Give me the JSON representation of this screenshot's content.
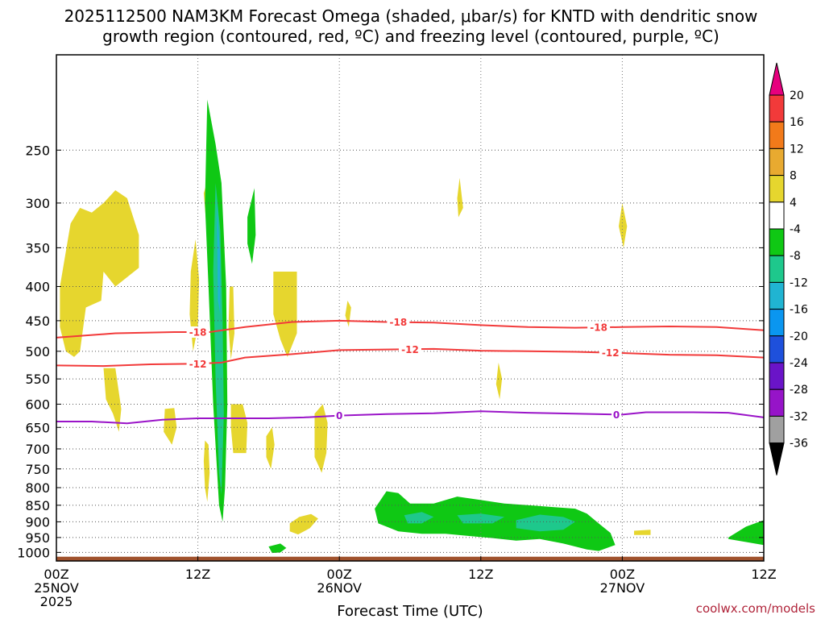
{
  "chart_data": {
    "type": "time-height cross section",
    "title_line1": "2025112500 NAM3KM Forecast Omega (shaded, μbar/s) for KNTD with dendritic snow",
    "title_line2": "growth region (contoured, red, ºC) and freezing level (contoured, purple, ºC)",
    "xlabel": "Forecast Time (UTC)",
    "x_range_hours": [
      0,
      60
    ],
    "y_range_hpa": [
      1030,
      180
    ],
    "x_ticks": [
      {
        "hour": 0,
        "line1": "00Z",
        "line2": "25NOV",
        "line3": "2025"
      },
      {
        "hour": 12,
        "line1": "12Z",
        "line2": "",
        "line3": ""
      },
      {
        "hour": 24,
        "line1": "00Z",
        "line2": "26NOV",
        "line3": ""
      },
      {
        "hour": 36,
        "line1": "12Z",
        "line2": "",
        "line3": ""
      },
      {
        "hour": 48,
        "line1": "00Z",
        "line2": "27NOV",
        "line3": ""
      },
      {
        "hour": 60,
        "line1": "12Z",
        "line2": "",
        "line3": ""
      }
    ],
    "y_ticks": [
      250,
      300,
      350,
      400,
      450,
      500,
      550,
      600,
      650,
      700,
      750,
      800,
      850,
      900,
      950,
      1000
    ],
    "y_tick_labels": [
      "250",
      "300",
      "350",
      "400",
      "450",
      "500",
      "550",
      "600",
      "650",
      "700",
      "750",
      "800",
      "850",
      "900",
      "950",
      "1000"
    ],
    "colorbar": {
      "levels": [
        "20",
        "16",
        "12",
        "8",
        "4",
        "-4",
        "-8",
        "-12",
        "-16",
        "-20",
        "-24",
        "-28",
        "-32",
        "-36"
      ],
      "colors": [
        "#e6007e",
        "#f23a3a",
        "#f27a1a",
        "#e8aa30",
        "#e6d62e",
        "#ffffff",
        "#0fc814",
        "#1ec88c",
        "#20b4d2",
        "#0a96f0",
        "#1e50dc",
        "#6a14c8",
        "#9614c8",
        "#a0a0a0",
        "#000000"
      ]
    },
    "contours": [
      {
        "name": "-18",
        "color": "#f23a3a",
        "points": [
          [
            0,
            477
          ],
          [
            5,
            470
          ],
          [
            10,
            468
          ],
          [
            13,
            468
          ],
          [
            16,
            460
          ],
          [
            20,
            452
          ],
          [
            24,
            450
          ],
          [
            28,
            452
          ],
          [
            32,
            453
          ],
          [
            36,
            457
          ],
          [
            40,
            460
          ],
          [
            44,
            461
          ],
          [
            48,
            460
          ],
          [
            52,
            459
          ],
          [
            56,
            460
          ],
          [
            60,
            465
          ]
        ],
        "labels": [
          {
            "hour": 12,
            "text": "-18"
          },
          {
            "hour": 29,
            "text": "-18"
          },
          {
            "hour": 46,
            "text": "-18"
          }
        ]
      },
      {
        "name": "-12",
        "color": "#f23a3a",
        "points": [
          [
            0,
            525
          ],
          [
            4,
            526
          ],
          [
            8,
            523
          ],
          [
            12,
            522
          ],
          [
            14,
            520
          ],
          [
            16,
            511
          ],
          [
            20,
            505
          ],
          [
            24,
            498
          ],
          [
            28,
            497
          ],
          [
            32,
            496
          ],
          [
            36,
            499
          ],
          [
            40,
            500
          ],
          [
            44,
            501
          ],
          [
            48,
            503
          ],
          [
            52,
            506
          ],
          [
            56,
            507
          ],
          [
            60,
            511
          ]
        ],
        "labels": [
          {
            "hour": 12,
            "text": "-12"
          },
          {
            "hour": 30,
            "text": "-12"
          },
          {
            "hour": 47,
            "text": "-12"
          }
        ]
      },
      {
        "name": "0",
        "color": "#9a14c8",
        "points": [
          [
            0,
            637
          ],
          [
            3,
            637
          ],
          [
            6,
            641
          ],
          [
            9,
            633
          ],
          [
            12,
            630
          ],
          [
            15,
            630
          ],
          [
            18,
            630
          ],
          [
            21,
            628
          ],
          [
            24,
            624
          ],
          [
            28,
            621
          ],
          [
            32,
            619
          ],
          [
            36,
            615
          ],
          [
            40,
            618
          ],
          [
            44,
            620
          ],
          [
            48,
            622
          ],
          [
            50,
            617
          ],
          [
            54,
            617
          ],
          [
            57,
            618
          ],
          [
            60,
            628
          ]
        ],
        "labels": [
          {
            "hour": 24,
            "text": "0"
          },
          {
            "hour": 47.5,
            "text": "0"
          }
        ]
      }
    ],
    "shaded_regions": [
      {
        "level": "4 to 8",
        "color": "#e6d62e",
        "points": [
          [
            0.3,
            400
          ],
          [
            1.2,
            322
          ],
          [
            2,
            305
          ],
          [
            3,
            310
          ],
          [
            4,
            300
          ],
          [
            5,
            287
          ],
          [
            6,
            295
          ],
          [
            7,
            335
          ],
          [
            7,
            375
          ],
          [
            5,
            400
          ],
          [
            4,
            380
          ],
          [
            3.8,
            420
          ],
          [
            2.5,
            430
          ],
          [
            2,
            500
          ],
          [
            1.5,
            510
          ],
          [
            0.8,
            500
          ],
          [
            0.3,
            460
          ]
        ]
      },
      {
        "level": "4 to 8",
        "color": "#e6d62e",
        "points": [
          [
            4,
            530
          ],
          [
            5,
            530
          ],
          [
            5.5,
            610
          ],
          [
            5.3,
            660
          ],
          [
            4.8,
            620
          ],
          [
            4.2,
            590
          ]
        ]
      },
      {
        "level": "4 to 8",
        "color": "#e6d62e",
        "points": [
          [
            9.2,
            610
          ],
          [
            10,
            608
          ],
          [
            10.2,
            650
          ],
          [
            9.8,
            690
          ],
          [
            9.1,
            660
          ]
        ]
      },
      {
        "level": "4 to 8",
        "color": "#e6d62e",
        "points": [
          [
            11.4,
            380
          ],
          [
            11.8,
            340
          ],
          [
            12.1,
            390
          ],
          [
            12,
            460
          ],
          [
            11.6,
            500
          ],
          [
            11.3,
            440
          ]
        ]
      },
      {
        "level": "4 to 8",
        "color": "#e6d62e",
        "points": [
          [
            12.5,
            290
          ],
          [
            12.8,
            278
          ],
          [
            13,
            300
          ],
          [
            12.7,
            320
          ]
        ]
      },
      {
        "level": "4 to 8",
        "color": "#e6d62e",
        "points": [
          [
            12.6,
            680
          ],
          [
            12.9,
            690
          ],
          [
            13,
            760
          ],
          [
            12.8,
            840
          ],
          [
            12.6,
            800
          ],
          [
            12.5,
            730
          ]
        ]
      },
      {
        "level": "4 to 8",
        "color": "#e6d62e",
        "points": [
          [
            14.7,
            400
          ],
          [
            15,
            400
          ],
          [
            15.1,
            470
          ],
          [
            14.8,
            515
          ],
          [
            14.6,
            460
          ]
        ]
      },
      {
        "level": "4 to 8",
        "color": "#e6d62e",
        "points": [
          [
            14.8,
            600
          ],
          [
            15.8,
            600
          ],
          [
            16.2,
            640
          ],
          [
            16.1,
            710
          ],
          [
            15,
            710
          ],
          [
            14.8,
            650
          ]
        ]
      },
      {
        "level": "4 to 8",
        "color": "#e6d62e",
        "points": [
          [
            17.8,
            670
          ],
          [
            18.3,
            650
          ],
          [
            18.5,
            690
          ],
          [
            18.2,
            750
          ],
          [
            17.8,
            720
          ]
        ]
      },
      {
        "level": "4 to 8",
        "color": "#e6d62e",
        "points": [
          [
            18.4,
            380
          ],
          [
            20.4,
            380
          ],
          [
            20.4,
            470
          ],
          [
            19.6,
            510
          ],
          [
            19,
            480
          ],
          [
            18.4,
            440
          ]
        ]
      },
      {
        "level": "4 to 8",
        "color": "#e6d62e",
        "points": [
          [
            21.9,
            620
          ],
          [
            22.6,
            600
          ],
          [
            23,
            640
          ],
          [
            22.9,
            710
          ],
          [
            22.5,
            760
          ],
          [
            21.9,
            720
          ]
        ]
      },
      {
        "level": "4 to 8",
        "color": "#e6d62e",
        "points": [
          [
            19.8,
            905
          ],
          [
            20.6,
            885
          ],
          [
            21.6,
            876
          ],
          [
            22.2,
            890
          ],
          [
            21.5,
            920
          ],
          [
            20.5,
            940
          ],
          [
            19.8,
            930
          ]
        ]
      },
      {
        "level": "4 to 8",
        "color": "#e6d62e",
        "points": [
          [
            24.5,
            442
          ],
          [
            24.7,
            420
          ],
          [
            25,
            430
          ],
          [
            24.8,
            460
          ]
        ]
      },
      {
        "level": "4 to 8",
        "color": "#e6d62e",
        "points": [
          [
            34,
            295
          ],
          [
            34.2,
            275
          ],
          [
            34.5,
            305
          ],
          [
            34.1,
            315
          ]
        ]
      },
      {
        "level": "4 to 8",
        "color": "#e6d62e",
        "points": [
          [
            37.3,
            560
          ],
          [
            37.5,
            520
          ],
          [
            37.8,
            550
          ],
          [
            37.6,
            590
          ]
        ]
      },
      {
        "level": "4 to 8",
        "color": "#e6d62e",
        "points": [
          [
            47.7,
            325
          ],
          [
            48,
            300
          ],
          [
            48.4,
            325
          ],
          [
            48.1,
            350
          ]
        ]
      },
      {
        "level": "4 to 8",
        "color": "#e6d62e",
        "points": [
          [
            49,
            928
          ],
          [
            50.4,
            925
          ],
          [
            50.4,
            942
          ],
          [
            49,
            942
          ]
        ]
      },
      {
        "level": "-4 to -8",
        "color": "#0fc814",
        "points": [
          [
            12.8,
            210
          ],
          [
            13.5,
            245
          ],
          [
            14,
            280
          ],
          [
            14.4,
            400
          ],
          [
            14.5,
            600
          ],
          [
            14.3,
            800
          ],
          [
            14.1,
            900
          ],
          [
            13.8,
            850
          ],
          [
            13.3,
            600
          ],
          [
            12.9,
            400
          ],
          [
            12.6,
            300
          ]
        ]
      },
      {
        "level": "-8 to -12",
        "color": "#1ec88c",
        "points": [
          [
            13.5,
            280
          ],
          [
            13.9,
            330
          ],
          [
            14.1,
            450
          ],
          [
            14.2,
            620
          ],
          [
            14,
            820
          ],
          [
            13.8,
            760
          ],
          [
            13.5,
            550
          ],
          [
            13.3,
            380
          ]
        ]
      },
      {
        "level": "-12 to -16",
        "color": "#20b4d2",
        "points": [
          [
            13.6,
            300
          ],
          [
            13.9,
            360
          ],
          [
            13.9,
            440
          ],
          [
            13.7,
            420
          ]
        ]
      },
      {
        "level": "-4 to -8",
        "color": "#0fc814",
        "points": [
          [
            16.2,
            315
          ],
          [
            16.8,
            285
          ],
          [
            16.9,
            335
          ],
          [
            16.6,
            370
          ],
          [
            16.2,
            345
          ]
        ]
      },
      {
        "level": "-4 to -8",
        "color": "#0fc814",
        "points": [
          [
            18,
            980
          ],
          [
            19,
            970
          ],
          [
            19.5,
            985
          ],
          [
            19,
            1000
          ],
          [
            18.3,
            1002
          ]
        ]
      },
      {
        "level": "-4 to -8",
        "color": "#0fc814",
        "points": [
          [
            27,
            860
          ],
          [
            28,
            810
          ],
          [
            29,
            815
          ],
          [
            30,
            845
          ],
          [
            32,
            845
          ],
          [
            34,
            825
          ],
          [
            36,
            835
          ],
          [
            38,
            845
          ],
          [
            40,
            850
          ],
          [
            42,
            855
          ],
          [
            44,
            860
          ],
          [
            45,
            875
          ],
          [
            46,
            905
          ],
          [
            47,
            935
          ],
          [
            47.4,
            975
          ],
          [
            46,
            995
          ],
          [
            45,
            990
          ],
          [
            43,
            970
          ],
          [
            41,
            955
          ],
          [
            39,
            960
          ],
          [
            37,
            952
          ],
          [
            35,
            945
          ],
          [
            33,
            938
          ],
          [
            31,
            938
          ],
          [
            29,
            930
          ],
          [
            28,
            915
          ],
          [
            27.3,
            905
          ]
        ]
      },
      {
        "level": "-8 to -12",
        "color": "#1ec88c",
        "points": [
          [
            29.5,
            880
          ],
          [
            31,
            870
          ],
          [
            32,
            885
          ],
          [
            31,
            905
          ],
          [
            29.8,
            905
          ]
        ]
      },
      {
        "level": "-8 to -12",
        "color": "#1ec88c",
        "points": [
          [
            34,
            880
          ],
          [
            36,
            875
          ],
          [
            38,
            885
          ],
          [
            37,
            905
          ],
          [
            34.5,
            905
          ]
        ]
      },
      {
        "level": "-8 to -12",
        "color": "#1ec88c",
        "points": [
          [
            39,
            895
          ],
          [
            41,
            878
          ],
          [
            43,
            885
          ],
          [
            44,
            900
          ],
          [
            43,
            925
          ],
          [
            41,
            930
          ],
          [
            39,
            920
          ]
        ]
      },
      {
        "level": "-4 to -8",
        "color": "#0fc814",
        "points": [
          [
            57,
            950
          ],
          [
            58.5,
            915
          ],
          [
            60,
            895
          ],
          [
            60,
            975
          ],
          [
            58.5,
            965
          ],
          [
            57,
            955
          ]
        ]
      }
    ],
    "terrain_band": {
      "color": "#a0522d",
      "top_hpa": 1015
    },
    "watermark": "coolwx.com/models"
  }
}
